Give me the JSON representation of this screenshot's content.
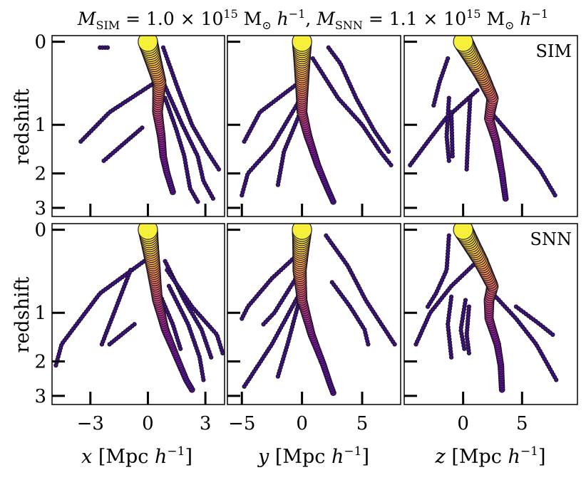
{
  "title": {
    "m_sim": "M",
    "m_sim_sub": "SIM",
    "eq1": " = 1.0 × 10",
    "exp1": "15",
    "unit1": " M",
    "sun1": "⊙",
    "h1": " h",
    "hexp1": "−1",
    "sep": ",  ",
    "m_snn": "M",
    "m_snn_sub": "SNN",
    "eq2": " = 1.1 × 10",
    "exp2": "15",
    "unit2": " M",
    "sun2": "⊙",
    "h2": " h",
    "hexp2": "−1"
  },
  "ylabel": "redshift",
  "xlabels": [
    {
      "var": "x",
      "unit": " [Mpc ",
      "h": "h",
      "exp": "−1",
      "close": "]"
    },
    {
      "var": "y",
      "unit": " [Mpc ",
      "h": "h",
      "exp": "−1",
      "close": "]"
    },
    {
      "var": "z",
      "unit": " [Mpc ",
      "h": "h",
      "exp": "−1",
      "close": "]"
    }
  ],
  "row_labels": [
    "SIM",
    "SNN"
  ],
  "colors": {
    "edge": "#1a1020",
    "cmap": [
      "#2a1278",
      "#5a10a8",
      "#8e16a8",
      "#c03a8a",
      "#e4686a",
      "#f79a4a",
      "#fccb3c",
      "#f6f03a"
    ]
  },
  "chart_data": {
    "type": "scatter",
    "description": "Merger-tree progenitor halos: position vs redshift, marker size/colour scale with halo mass",
    "yaxis": {
      "label": "redshift",
      "scale": "log(1+z)",
      "inverted": true,
      "ticks": [
        0,
        1,
        2,
        3
      ],
      "lim": [
        -0.05,
        3.3
      ]
    },
    "columns": [
      {
        "axis": "x",
        "xlim": [
          -5.0,
          4.0
        ],
        "ticks": [
          -3,
          0,
          3
        ],
        "tick_labels": [
          "−3",
          "0",
          "3"
        ]
      },
      {
        "axis": "y",
        "xlim": [
          -6.2,
          8.2
        ],
        "ticks": [
          -5,
          0,
          5
        ],
        "tick_labels": [
          "−5",
          "0",
          "5"
        ]
      },
      {
        "axis": "z",
        "xlim": [
          -5.0,
          9.7
        ],
        "ticks": [
          0,
          5
        ],
        "tick_labels": [
          "0",
          "5"
        ]
      }
    ],
    "panels": [
      {
        "row": "SIM",
        "col": "x",
        "tracks": [
          {
            "role": "main",
            "pts": [
              [
                0,
                0
              ],
              [
                0.6,
                0.4
              ],
              [
                0.5,
                0.8
              ],
              [
                0.7,
                1.2
              ],
              [
                0.8,
                1.6
              ],
              [
                1.0,
                2.0
              ],
              [
                1.3,
                2.5
              ]
            ]
          },
          {
            "role": "branch",
            "pts": [
              [
                0.4,
                0.4
              ],
              [
                -2.0,
                0.8
              ],
              [
                -3.5,
                1.3
              ]
            ]
          },
          {
            "role": "branch",
            "pts": [
              [
                -2.5,
                0.05
              ],
              [
                -2.1,
                0.05
              ]
            ]
          },
          {
            "role": "branch",
            "pts": [
              [
                -0.3,
                1.05
              ],
              [
                -2.3,
                1.7
              ]
            ]
          },
          {
            "role": "branch",
            "pts": [
              [
                0.8,
                0.05
              ],
              [
                1.6,
                0.5
              ],
              [
                2.3,
                1.0
              ],
              [
                3.1,
                1.5
              ],
              [
                3.7,
                1.9
              ]
            ]
          },
          {
            "role": "branch",
            "pts": [
              [
                0.8,
                0.4
              ],
              [
                1.8,
                1.0
              ],
              [
                2.6,
                1.6
              ],
              [
                2.9,
                2.2
              ],
              [
                3.4,
                2.7
              ]
            ]
          },
          {
            "role": "branch",
            "pts": [
              [
                0.9,
                0.6
              ],
              [
                1.5,
                1.1
              ],
              [
                1.9,
                1.6
              ],
              [
                2.2,
                2.4
              ],
              [
                2.6,
                2.8
              ]
            ]
          }
        ]
      },
      {
        "row": "SIM",
        "col": "y",
        "tracks": [
          {
            "role": "main",
            "pts": [
              [
                0,
                0
              ],
              [
                0,
                0.4
              ],
              [
                0,
                0.8
              ],
              [
                0.5,
                1.2
              ],
              [
                1.3,
                1.8
              ],
              [
                2.1,
                2.4
              ],
              [
                2.6,
                2.8
              ]
            ]
          },
          {
            "role": "branch",
            "pts": [
              [
                -0.2,
                0.4
              ],
              [
                -3.5,
                0.8
              ],
              [
                -4.8,
                1.3
              ]
            ]
          },
          {
            "role": "branch",
            "pts": [
              [
                -0.1,
                0.6
              ],
              [
                -2.5,
                1.4
              ],
              [
                -4.5,
                2.0
              ],
              [
                -5.0,
                2.6
              ]
            ]
          },
          {
            "role": "branch",
            "pts": [
              [
                0.1,
                0.7
              ],
              [
                -1.5,
                1.5
              ],
              [
                -2.0,
                2.3
              ]
            ]
          },
          {
            "role": "branch",
            "pts": [
              [
                2.2,
                0.05
              ],
              [
                3.2,
                0.2
              ],
              [
                4.5,
                0.6
              ],
              [
                6.0,
                1.1
              ],
              [
                7.2,
                1.5
              ]
            ]
          },
          {
            "role": "branch",
            "pts": [
              [
                0.9,
                0.15
              ],
              [
                3.0,
                0.6
              ],
              [
                5.0,
                1.0
              ],
              [
                6.5,
                1.5
              ],
              [
                7.4,
                1.8
              ]
            ]
          }
        ]
      },
      {
        "row": "SIM",
        "col": "z",
        "tracks": [
          {
            "role": "main",
            "pts": [
              [
                0,
                0
              ],
              [
                1.5,
                0.3
              ],
              [
                2.5,
                0.6
              ],
              [
                2.2,
                0.9
              ],
              [
                2.8,
                1.3
              ],
              [
                3.3,
                2.0
              ],
              [
                3.6,
                2.7
              ]
            ]
          },
          {
            "role": "branch",
            "pts": [
              [
                1.2,
                0.5
              ],
              [
                -1.5,
                0.9
              ],
              [
                -3.0,
                1.3
              ],
              [
                -4.5,
                1.8
              ]
            ]
          },
          {
            "role": "branch",
            "pts": [
              [
                -1.2,
                0.6
              ],
              [
                -1.4,
                1.2
              ],
              [
                -1.2,
                1.7
              ]
            ]
          },
          {
            "role": "branch",
            "pts": [
              [
                -1.0,
                0.8
              ],
              [
                -0.9,
                1.6
              ]
            ]
          },
          {
            "role": "branch",
            "pts": [
              [
                0.6,
                0.6
              ],
              [
                0.4,
                1.3
              ],
              [
                0.3,
                1.9
              ]
            ]
          },
          {
            "role": "branch",
            "pts": [
              [
                2.6,
                0.85
              ],
              [
                4.5,
                1.3
              ],
              [
                6.5,
                1.9
              ],
              [
                7.8,
                2.6
              ]
            ]
          },
          {
            "role": "branch",
            "pts": [
              [
                -1.3,
                0.15
              ],
              [
                -2.0,
                0.4
              ],
              [
                -2.5,
                0.7
              ]
            ]
          }
        ]
      },
      {
        "row": "SNN",
        "col": "x",
        "tracks": [
          {
            "role": "main",
            "pts": [
              [
                0,
                0
              ],
              [
                0.3,
                0.4
              ],
              [
                0.5,
                0.8
              ],
              [
                0.9,
                1.3
              ],
              [
                1.5,
                1.9
              ],
              [
                2.0,
                2.5
              ],
              [
                2.3,
                2.8
              ]
            ]
          },
          {
            "role": "branch",
            "pts": [
              [
                -0.2,
                0.3
              ],
              [
                -2.5,
                0.7
              ],
              [
                -4.5,
                1.6
              ],
              [
                -4.8,
                2.1
              ]
            ]
          },
          {
            "role": "branch",
            "pts": [
              [
                -0.9,
                0.4
              ],
              [
                -2.0,
                1.2
              ],
              [
                -2.4,
                1.6
              ]
            ]
          },
          {
            "role": "branch",
            "pts": [
              [
                -0.7,
                1.2
              ],
              [
                -2.0,
                1.6
              ]
            ]
          },
          {
            "role": "branch",
            "pts": [
              [
                0.9,
                0.3
              ],
              [
                1.9,
                0.8
              ],
              [
                2.8,
                1.3
              ],
              [
                3.3,
                1.9
              ]
            ]
          },
          {
            "role": "branch",
            "pts": [
              [
                1.0,
                0.4
              ],
              [
                2.3,
                0.9
              ],
              [
                3.6,
                1.4
              ],
              [
                3.9,
                1.8
              ]
            ]
          },
          {
            "role": "branch",
            "pts": [
              [
                0.6,
                0.7
              ],
              [
                1.3,
                1.2
              ],
              [
                1.7,
                1.7
              ]
            ]
          },
          {
            "role": "branch",
            "pts": [
              [
                1.1,
                0.6
              ],
              [
                2.1,
                1.2
              ],
              [
                2.7,
                1.9
              ],
              [
                2.9,
                2.5
              ]
            ]
          }
        ]
      },
      {
        "row": "SNN",
        "col": "y",
        "tracks": [
          {
            "role": "main",
            "pts": [
              [
                0,
                0
              ],
              [
                -0.2,
                0.4
              ],
              [
                0,
                0.8
              ],
              [
                0.8,
                1.4
              ],
              [
                1.8,
                2.1
              ],
              [
                2.3,
                2.6
              ],
              [
                2.6,
                2.9
              ]
            ]
          },
          {
            "role": "branch",
            "pts": [
              [
                -0.1,
                0.2
              ],
              [
                -2.5,
                0.5
              ],
              [
                -4.5,
                0.9
              ],
              [
                -5.0,
                1.1
              ]
            ]
          },
          {
            "role": "branch",
            "pts": [
              [
                -0.3,
                0.45
              ],
              [
                -2.3,
                1.0
              ],
              [
                -3.2,
                1.2
              ]
            ]
          },
          {
            "role": "branch",
            "pts": [
              [
                -0.2,
                0.7
              ],
              [
                -2.5,
                1.6
              ],
              [
                -4.8,
                2.7
              ]
            ]
          },
          {
            "role": "branch",
            "pts": [
              [
                0.1,
                0.6
              ],
              [
                -1.2,
                1.6
              ],
              [
                -2.0,
                2.4
              ]
            ]
          },
          {
            "role": "branch",
            "pts": [
              [
                2.0,
                0.05
              ],
              [
                3.8,
                0.35
              ],
              [
                5.3,
                0.8
              ],
              [
                6.6,
                1.2
              ],
              [
                7.7,
                1.6
              ]
            ]
          },
          {
            "role": "branch",
            "pts": [
              [
                2.5,
                0.55
              ],
              [
                4.0,
                0.9
              ],
              [
                5.2,
                1.3
              ],
              [
                5.5,
                1.6
              ]
            ]
          }
        ]
      },
      {
        "row": "SNN",
        "col": "z",
        "tracks": [
          {
            "role": "main",
            "pts": [
              [
                0,
                0
              ],
              [
                1.5,
                0.3
              ],
              [
                2.5,
                0.6
              ],
              [
                2.2,
                0.8
              ],
              [
                2.2,
                1.1
              ],
              [
                2.9,
                1.6
              ],
              [
                3.2,
                2.1
              ],
              [
                3.3,
                2.8
              ]
            ]
          },
          {
            "role": "branch",
            "pts": [
              [
                1.2,
                0.3
              ],
              [
                -1.0,
                0.6
              ],
              [
                -2.8,
                1.0
              ],
              [
                -4.0,
                1.6
              ]
            ]
          },
          {
            "role": "branch",
            "pts": [
              [
                -1.2,
                0.05
              ],
              [
                -1.4,
                0.4
              ],
              [
                -2.3,
                0.7
              ],
              [
                -3.0,
                0.9
              ]
            ]
          },
          {
            "role": "branch",
            "pts": [
              [
                -1.0,
                0.75
              ],
              [
                -1.3,
                1.2
              ],
              [
                -1.0,
                1.9
              ]
            ]
          },
          {
            "role": "branch",
            "pts": [
              [
                0.2,
                0.8
              ],
              [
                -0.2,
                1.3
              ],
              [
                0.1,
                1.7
              ]
            ]
          },
          {
            "role": "branch",
            "pts": [
              [
                0.5,
                0.9
              ],
              [
                0.3,
                1.4
              ],
              [
                0.5,
                1.8
              ]
            ]
          },
          {
            "role": "branch",
            "pts": [
              [
                2.5,
                0.7
              ],
              [
                4.5,
                1.1
              ],
              [
                6.2,
                1.6
              ],
              [
                7.9,
                2.5
              ]
            ]
          },
          {
            "role": "branch",
            "pts": [
              [
                4.5,
                0.9
              ],
              [
                6.5,
                1.2
              ],
              [
                7.6,
                1.4
              ]
            ]
          }
        ]
      }
    ]
  }
}
